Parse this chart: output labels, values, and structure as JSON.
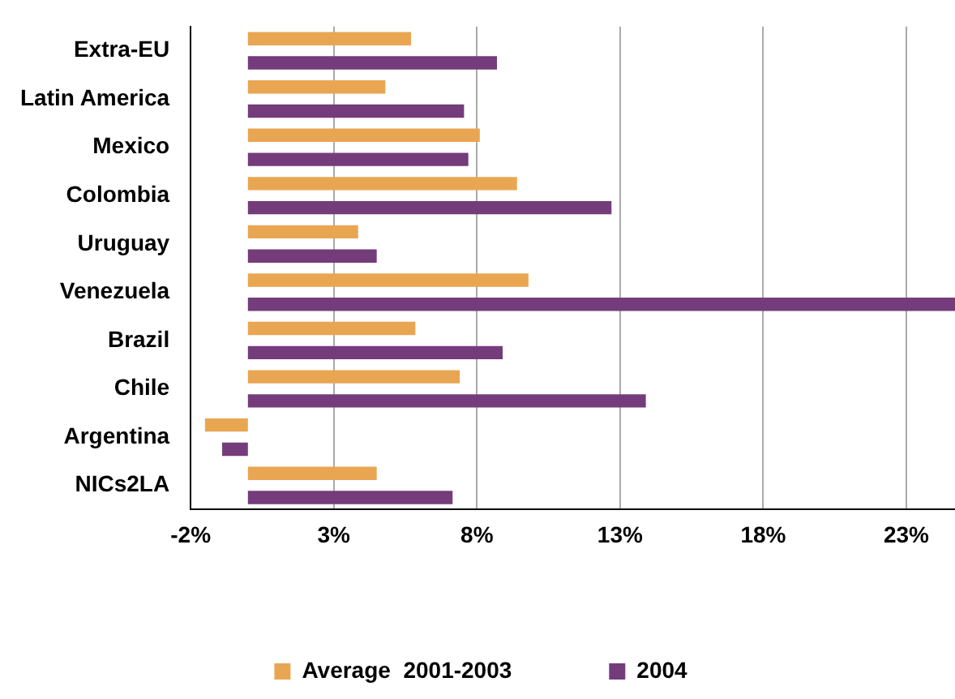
{
  "chart_data": {
    "type": "bar",
    "orientation": "horizontal",
    "categories": [
      "Extra-EU",
      "Latin America",
      "Mexico",
      "Colombia",
      "Uruguay",
      "Venezuela",
      "Brazil",
      "Chile",
      "Argentina",
      "NICs2LA"
    ],
    "series": [
      {
        "name": "Average  2001-2003",
        "color": "#e9a652",
        "values": [
          5.7,
          4.8,
          8.1,
          9.4,
          3.85,
          9.8,
          5.85,
          7.4,
          -1.5,
          4.5
        ]
      },
      {
        "name": "2004",
        "color": "#743c7b",
        "values": [
          8.7,
          7.55,
          7.7,
          12.7,
          4.5,
          24.7,
          8.9,
          13.9,
          -0.9,
          7.15
        ]
      }
    ],
    "xlim": [
      -2,
      24.7
    ],
    "xticks": [
      {
        "value": -2,
        "label": "-2%"
      },
      {
        "value": 3,
        "label": "3%"
      },
      {
        "value": 8,
        "label": "8%"
      },
      {
        "value": 13,
        "label": "13%"
      },
      {
        "value": 18,
        "label": "18%"
      },
      {
        "value": 23,
        "label": "23%"
      }
    ],
    "grid": "x",
    "legend": "bottom"
  }
}
